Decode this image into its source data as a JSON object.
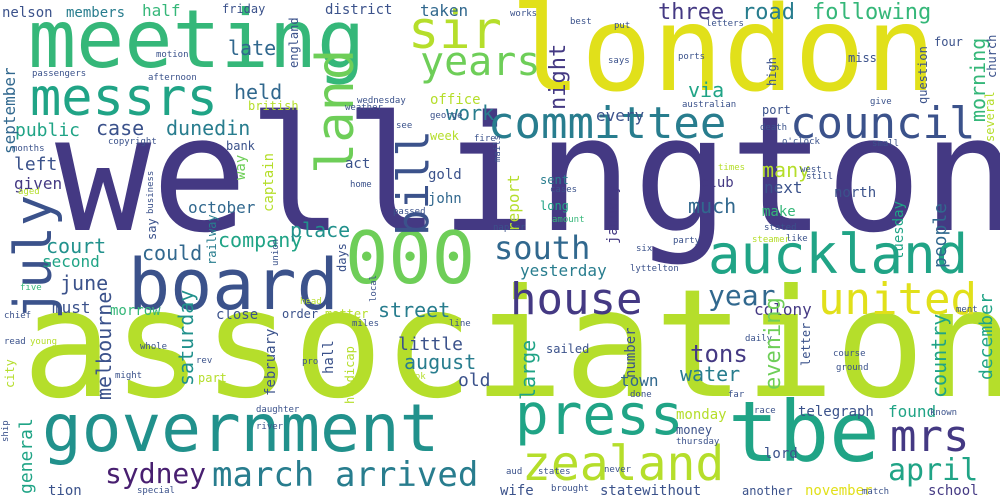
{
  "cloud": {
    "palette": {
      "navy": "#443983",
      "indigo": "#3b528b",
      "blue": "#31688e",
      "teal": "#287d8e",
      "cyan": "#21918c",
      "aqua": "#20a486",
      "green": "#35b779",
      "lime": "#6ece58",
      "yellowgreen": "#b5de2b",
      "yellow": "#e1e01a",
      "purple": "#481f70"
    },
    "words": {
      "wellington": "wellington",
      "association": "association",
      "london": "london",
      "meeting": "meeting",
      "board": "board",
      "government": "government",
      "tbe": "tbe",
      "press": "press",
      "zealand": "zealand",
      "auckland": "auckland",
      "house": "house",
      "committee": "committee",
      "council": "council",
      "messrs": "messrs",
      "sir": "sir",
      "united": "united",
      "south": "south",
      "mrs": "mrs",
      "march": "march",
      "arrived": "arrived",
      "april": "april",
      "sydney": "sydney",
      "years": "years",
      "bill": "bill",
      "land": "land",
      "july": "july",
      "thousand": "000",
      "year": "year",
      "three": "three",
      "road": "road",
      "following": "following",
      "many": "many",
      "work": "work",
      "night": "night",
      "held": "held",
      "late": "late",
      "public": "public",
      "case": "case",
      "dunedin": "dunedin",
      "via": "via",
      "morning": "morning",
      "left": "left",
      "given": "given",
      "court": "court",
      "second": "second",
      "june": "june",
      "company": "company",
      "place": "place",
      "could": "could",
      "october": "october",
      "yesterday": "yesterday",
      "must": "must",
      "melbourne": "melbourne",
      "street": "street",
      "little": "little",
      "august": "august",
      "old": "old",
      "large": "large",
      "tons": "tons",
      "water": "water",
      "evening": "evening",
      "saturday": "saturday",
      "colony": "colony",
      "found": "found",
      "telegraph": "telegraph",
      "monday": "monday",
      "money": "money",
      "country": "country",
      "town": "town",
      "december": "december",
      "people": "people",
      "school": "school",
      "november": "november",
      "general": "general",
      "nelson": "nelson",
      "members": "members",
      "half": "half",
      "friday": "friday",
      "district": "district",
      "taken": "taken",
      "every": "every",
      "works": "works",
      "best": "best",
      "put": "put",
      "four": "four",
      "church": "church",
      "miss": "miss",
      "high": "high",
      "ports": "ports",
      "says": "says",
      "question": "question",
      "give": "give",
      "several": "several",
      "death": "death",
      "oclock": "o'clock",
      "small": "small",
      "still": "still",
      "west": "west",
      "north": "north",
      "tuesday": "tuesday",
      "next": "next",
      "club": "club",
      "make": "make",
      "much": "much",
      "january": "january",
      "report": "report",
      "gold": "gold",
      "john": "john",
      "sent": "sent",
      "long": "long",
      "cases": "cases",
      "amount": "amount",
      "napier": "napier",
      "passed": "passed",
      "days": "days",
      "home": "home",
      "act": "act",
      "week": "week",
      "fire": "fire",
      "mails": "mails",
      "office": "office",
      "george": "george",
      "see": "see",
      "wednesday": "wednesday",
      "weather": "weather",
      "british": "british",
      "england": "england",
      "captain": "captain",
      "way": "way",
      "bank": "bank",
      "business": "business",
      "say": "say",
      "railway": "railway",
      "union": "union",
      "aged": "aged",
      "months": "months",
      "copyright": "copyright",
      "september": "september",
      "passengers": "passengers",
      "afternoon": "afternoon",
      "motion": "motion",
      "five": "five",
      "chief": "chief",
      "read": "read",
      "young": "young",
      "city": "city",
      "ship": "ship",
      "tion": "tion",
      "wife": "wife",
      "special": "special",
      "brought": "brought",
      "state": "state",
      "without": "without",
      "another": "another",
      "match": "match",
      "aud": "aud",
      "states": "states",
      "never": "never",
      "thursday": "thursday",
      "river": "river",
      "daughter": "daughter",
      "might": "might",
      "whole": "whole",
      "morrow": "morrow",
      "close": "close",
      "order": "order",
      "matter": "matter",
      "miles": "miles",
      "line": "line",
      "head": "head",
      "pro": "pro",
      "rev": "rev",
      "part": "part",
      "february": "february",
      "hall": "hall",
      "handicap": "handicap",
      "local": "local",
      "took": "took",
      "sailed": "sailed",
      "number": "number",
      "done": "done",
      "far": "far",
      "race": "race",
      "lord": "lord",
      "daily": "daily",
      "letter": "letter",
      "course": "course",
      "ground": "ground",
      "known": "known",
      "ment": "ment",
      "party": "party",
      "six": "six",
      "lyttelton": "lyttelton",
      "stated": "stated",
      "steamer": "steamer",
      "like": "like",
      "times": "times",
      "letters": "letters",
      "australian": "australian",
      "port": "port"
    }
  }
}
